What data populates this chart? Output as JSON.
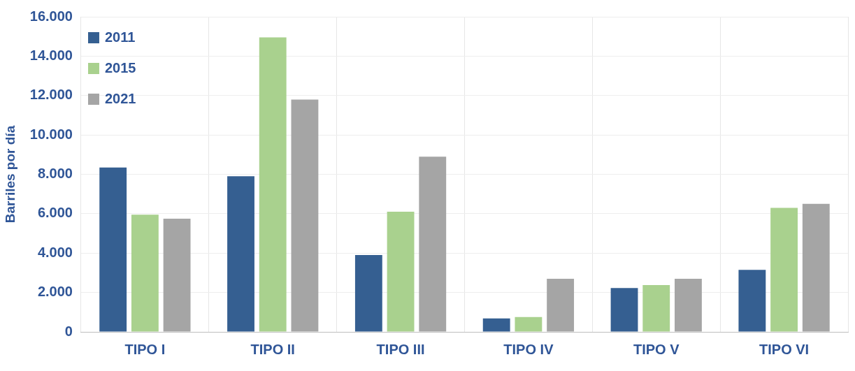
{
  "chart_data": {
    "type": "bar",
    "ylabel": "Barriles por día",
    "categories": [
      "TIPO I",
      "TIPO II",
      "TIPO III",
      "TIPO IV",
      "TIPO V",
      "TIPO VI"
    ],
    "series": [
      {
        "name": "2011",
        "color": "#355f91",
        "values": [
          8350,
          7900,
          3900,
          680,
          2230,
          3150
        ]
      },
      {
        "name": "2015",
        "color": "#a9d18e",
        "values": [
          5950,
          14950,
          6100,
          750,
          2380,
          6300
        ]
      },
      {
        "name": "2021",
        "color": "#a5a5a5",
        "values": [
          5750,
          11800,
          8900,
          2700,
          2700,
          6500
        ]
      }
    ],
    "ylim": [
      0,
      16000
    ],
    "yticks": [
      {
        "value": 0,
        "label": "0"
      },
      {
        "value": 2000,
        "label": "2.000"
      },
      {
        "value": 4000,
        "label": "4.000"
      },
      {
        "value": 6000,
        "label": "6.000"
      },
      {
        "value": 8000,
        "label": "8.000"
      },
      {
        "value": 10000,
        "label": "10.000"
      },
      {
        "value": 12000,
        "label": "12.000"
      },
      {
        "value": 14000,
        "label": "14.000"
      },
      {
        "value": 16000,
        "label": "16.000"
      }
    ],
    "grid": true,
    "legend": "top left"
  }
}
